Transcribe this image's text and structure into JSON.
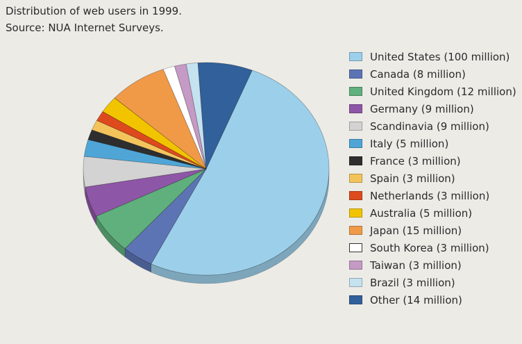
{
  "caption": {
    "line1": "Distribution of web users in 1999.",
    "line2": "Source: NUA Internet Surveys."
  },
  "chart_data": {
    "type": "pie",
    "title": "Distribution of web users in 1999.",
    "subtitle": "Source: NUA Internet Surveys.",
    "legend_position": "right",
    "unit": "million",
    "slices": [
      {
        "label": "United States (100 million)",
        "name": "United States",
        "value": 100,
        "color": "#9ccfea"
      },
      {
        "label": "Canada (8 million)",
        "name": "Canada",
        "value": 8,
        "color": "#5d74b4"
      },
      {
        "label": "United Kingdom (12 million)",
        "name": "United Kingdom",
        "value": 12,
        "color": "#5fb07c"
      },
      {
        "label": "Germany (9 million)",
        "name": "Germany",
        "value": 9,
        "color": "#8e56a6"
      },
      {
        "label": "Scandinavia (9 million)",
        "name": "Scandinavia",
        "value": 9,
        "color": "#d3d3d3"
      },
      {
        "label": "Italy (5 million)",
        "name": "Italy",
        "value": 5,
        "color": "#4fa6d6"
      },
      {
        "label": "France (3 million)",
        "name": "France",
        "value": 3,
        "color": "#2e2e2e"
      },
      {
        "label": "Spain (3 million)",
        "name": "Spain",
        "value": 3,
        "color": "#f4c45c"
      },
      {
        "label": "Netherlands (3 million)",
        "name": "Netherlands",
        "value": 3,
        "color": "#dd4a1e"
      },
      {
        "label": "Australia (5 million)",
        "name": "Australia",
        "value": 5,
        "color": "#f2c400"
      },
      {
        "label": "Japan (15 million)",
        "name": "Japan",
        "value": 15,
        "color": "#f09a48"
      },
      {
        "label": "South Korea (3 million)",
        "name": "South Korea",
        "value": 3,
        "color": "#ffffff"
      },
      {
        "label": "Taiwan (3 million)",
        "name": "Taiwan",
        "value": 3,
        "color": "#c59ac4"
      },
      {
        "label": "Brazil (3 million)",
        "name": "Brazil",
        "value": 3,
        "color": "#c4e2ef"
      },
      {
        "label": "Other (14 million)",
        "name": "Other",
        "value": 14,
        "color": "#31609a"
      }
    ]
  }
}
